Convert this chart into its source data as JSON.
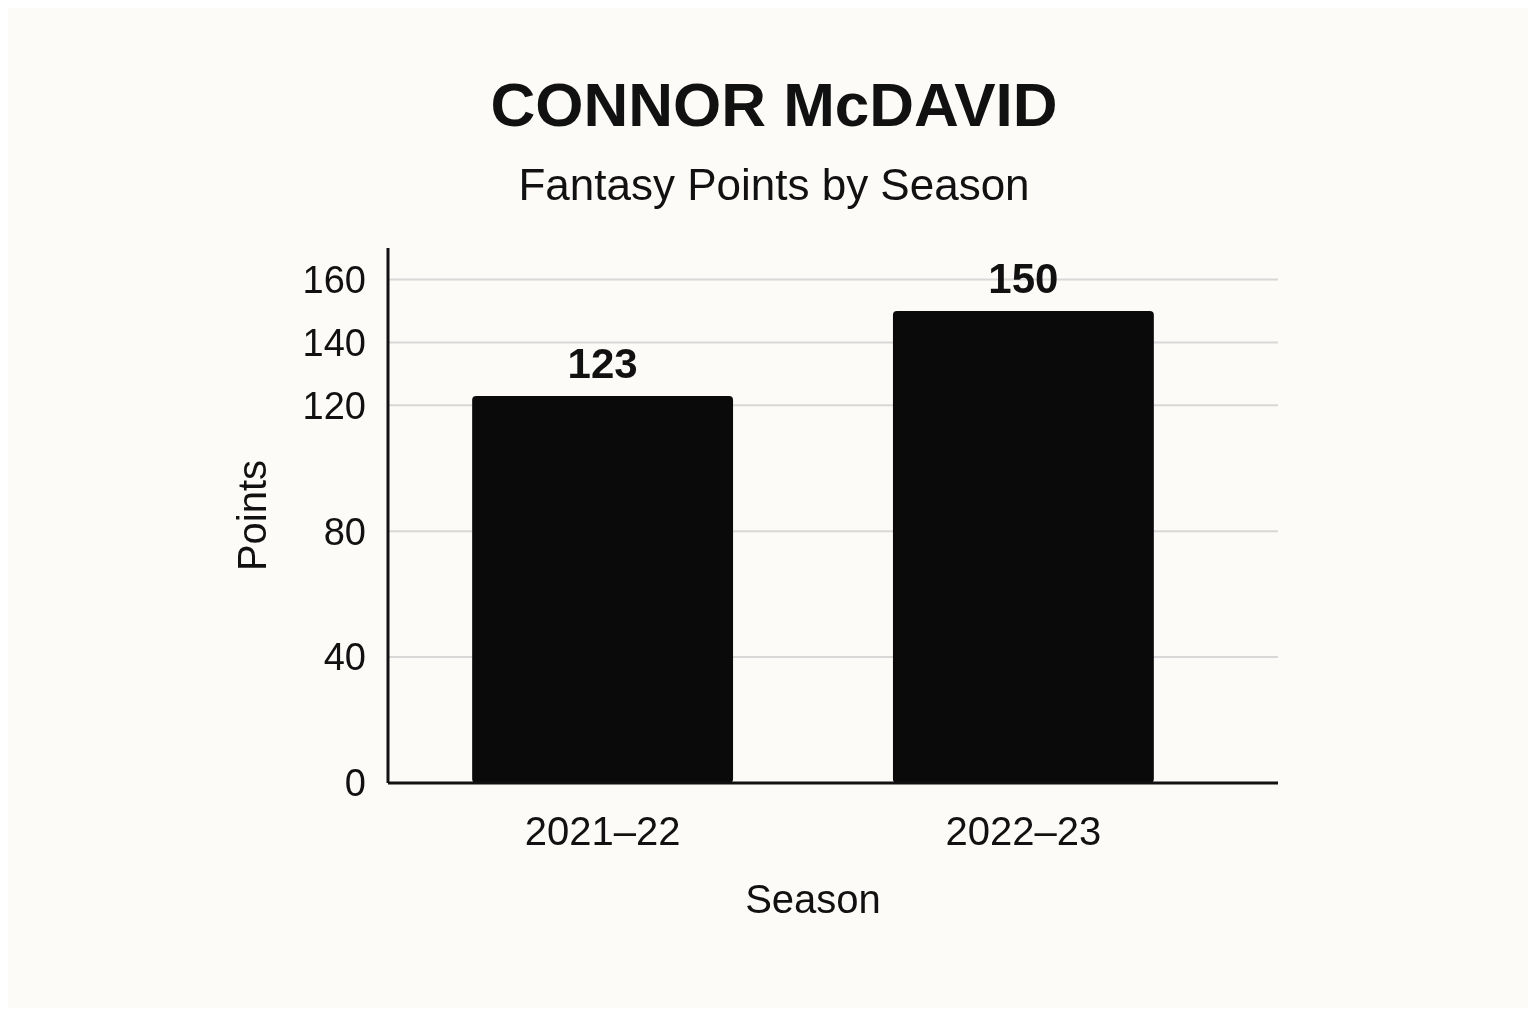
{
  "chart_data": {
    "type": "bar",
    "title": "CONNOR McDAVID",
    "subtitle": "Fantasy Points by Season",
    "xlabel": "Season",
    "ylabel": "Points",
    "categories": [
      "2021–22",
      "2022–23"
    ],
    "values": [
      123,
      150
    ],
    "color": "#0a0a0a",
    "ylim": [
      0,
      170
    ],
    "yticks": [
      0,
      40,
      80,
      120,
      140,
      160
    ],
    "grid": "y",
    "data_labels": true
  }
}
